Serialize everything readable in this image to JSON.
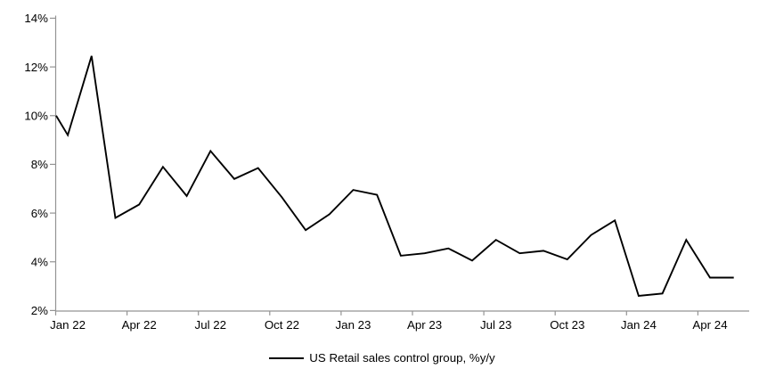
{
  "chart_data": {
    "type": "line",
    "title": "",
    "legend": {
      "label": "US Retail sales control group, %y/y",
      "position": "bottom-center"
    },
    "categories": [
      "Jan 22",
      "Feb 22",
      "Mar 22",
      "Apr 22",
      "May 22",
      "Jun 22",
      "Jul 22",
      "Aug 22",
      "Sep 22",
      "Oct 22",
      "Nov 22",
      "Dec 22",
      "Jan 23",
      "Feb 23",
      "Mar 23",
      "Apr 23",
      "May 23",
      "Jun 23",
      "Jul 23",
      "Aug 23",
      "Sep 23",
      "Oct 23",
      "Nov 23",
      "Dec 23",
      "Jan 24",
      "Feb 24",
      "Mar 24",
      "Apr 24",
      "May 24"
    ],
    "values": [
      9.2,
      12.45,
      5.8,
      6.35,
      7.9,
      6.7,
      8.55,
      7.4,
      7.85,
      6.65,
      5.3,
      5.95,
      6.95,
      6.75,
      4.25,
      4.35,
      4.55,
      4.05,
      4.9,
      4.35,
      4.45,
      4.1,
      5.1,
      5.7,
      2.6,
      2.7,
      4.9,
      3.35,
      3.35
    ],
    "line_enters_from_y_axis_at_pct": 10.0,
    "x_tick_labels": [
      "Jan 22",
      "Apr 22",
      "Jul 22",
      "Oct 22",
      "Jan 23",
      "Apr 23",
      "Jul 23",
      "Oct 23",
      "Jan 24",
      "Apr 24"
    ],
    "x_tick_interval_months": 3,
    "y_tick_labels": [
      "2%",
      "4%",
      "6%",
      "8%",
      "10%",
      "12%",
      "14%"
    ],
    "ylim": [
      2,
      14
    ],
    "xlabel": "",
    "ylabel": "",
    "grid": false,
    "series_color": "#000000",
    "axis_color": "#949494",
    "label_color": "#000000"
  },
  "legend": {
    "label": "US Retail sales control group, %y/y"
  }
}
